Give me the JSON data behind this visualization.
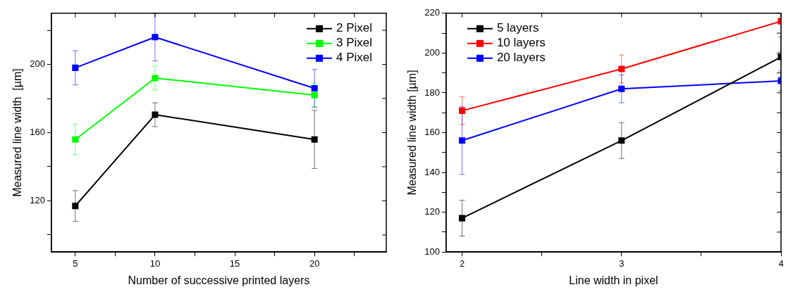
{
  "chart_data": [
    {
      "type": "line",
      "xlabel": "Number of successive printed layers",
      "ylabel": "Measured line width  [µm]",
      "x": [
        5,
        10,
        20
      ],
      "xlim": [
        3.5,
        24.5
      ],
      "xticks": [
        5,
        {
          "value": 7.5,
          "label": null
        },
        10,
        {
          "value": 12.5,
          "label": null
        },
        15,
        {
          "value": 17.5,
          "label": null
        },
        20,
        {
          "value": 22.5,
          "label": null
        }
      ],
      "ylim": [
        90,
        230
      ],
      "yticks": [
        {
          "value": 100,
          "label": null
        },
        120,
        {
          "value": 140,
          "label": null
        },
        160,
        {
          "value": 180,
          "label": null
        },
        200,
        {
          "value": 220,
          "label": null
        }
      ],
      "grid": false,
      "legend": "top right",
      "marker": "square",
      "line_style": "solid",
      "series": [
        {
          "name": "2 Pixel",
          "color": "#000000",
          "values": [
            117,
            170.5,
            156
          ],
          "errors": [
            9,
            7,
            17
          ]
        },
        {
          "name": "3 Pixel",
          "color": "#00ff00",
          "values": [
            156,
            192,
            182
          ],
          "errors": [
            9,
            7,
            7
          ]
        },
        {
          "name": "4 Pixel",
          "color": "#0000ff",
          "values": [
            198,
            216,
            186
          ],
          "errors": [
            10,
            14,
            11
          ]
        }
      ]
    },
    {
      "type": "line",
      "xlabel": "Line width in pixel",
      "ylabel": "Measured line width [µm]",
      "x": [
        2,
        3,
        4
      ],
      "xlim": [
        1.9,
        4
      ],
      "xticks": [
        2,
        {
          "value": 2.5,
          "label": null
        },
        3,
        {
          "value": 3.5,
          "label": null
        },
        4
      ],
      "ylim": [
        100,
        220
      ],
      "yticks": [
        100,
        {
          "value": 110,
          "label": null
        },
        120,
        {
          "value": 130,
          "label": null
        },
        140,
        {
          "value": 150,
          "label": null
        },
        160,
        {
          "value": 170,
          "label": null
        },
        180,
        {
          "value": 190,
          "label": null
        },
        200,
        {
          "value": 210,
          "label": null
        },
        220
      ],
      "grid": false,
      "legend": "top left",
      "marker": "square",
      "line_style": "solid",
      "series": [
        {
          "name": "5 layers",
          "color": "#000000",
          "values": [
            117,
            156,
            198
          ],
          "errors": [
            9,
            9,
            10
          ]
        },
        {
          "name": "10 layers",
          "color": "#ff0000",
          "values": [
            171,
            192,
            216
          ],
          "errors": [
            7,
            7,
            [
              201,
              220
            ]
          ]
        },
        {
          "name": "20 layers",
          "color": "#0000ff",
          "values": [
            156,
            182,
            186
          ],
          "errors": [
            17,
            7,
            5
          ]
        }
      ]
    }
  ]
}
